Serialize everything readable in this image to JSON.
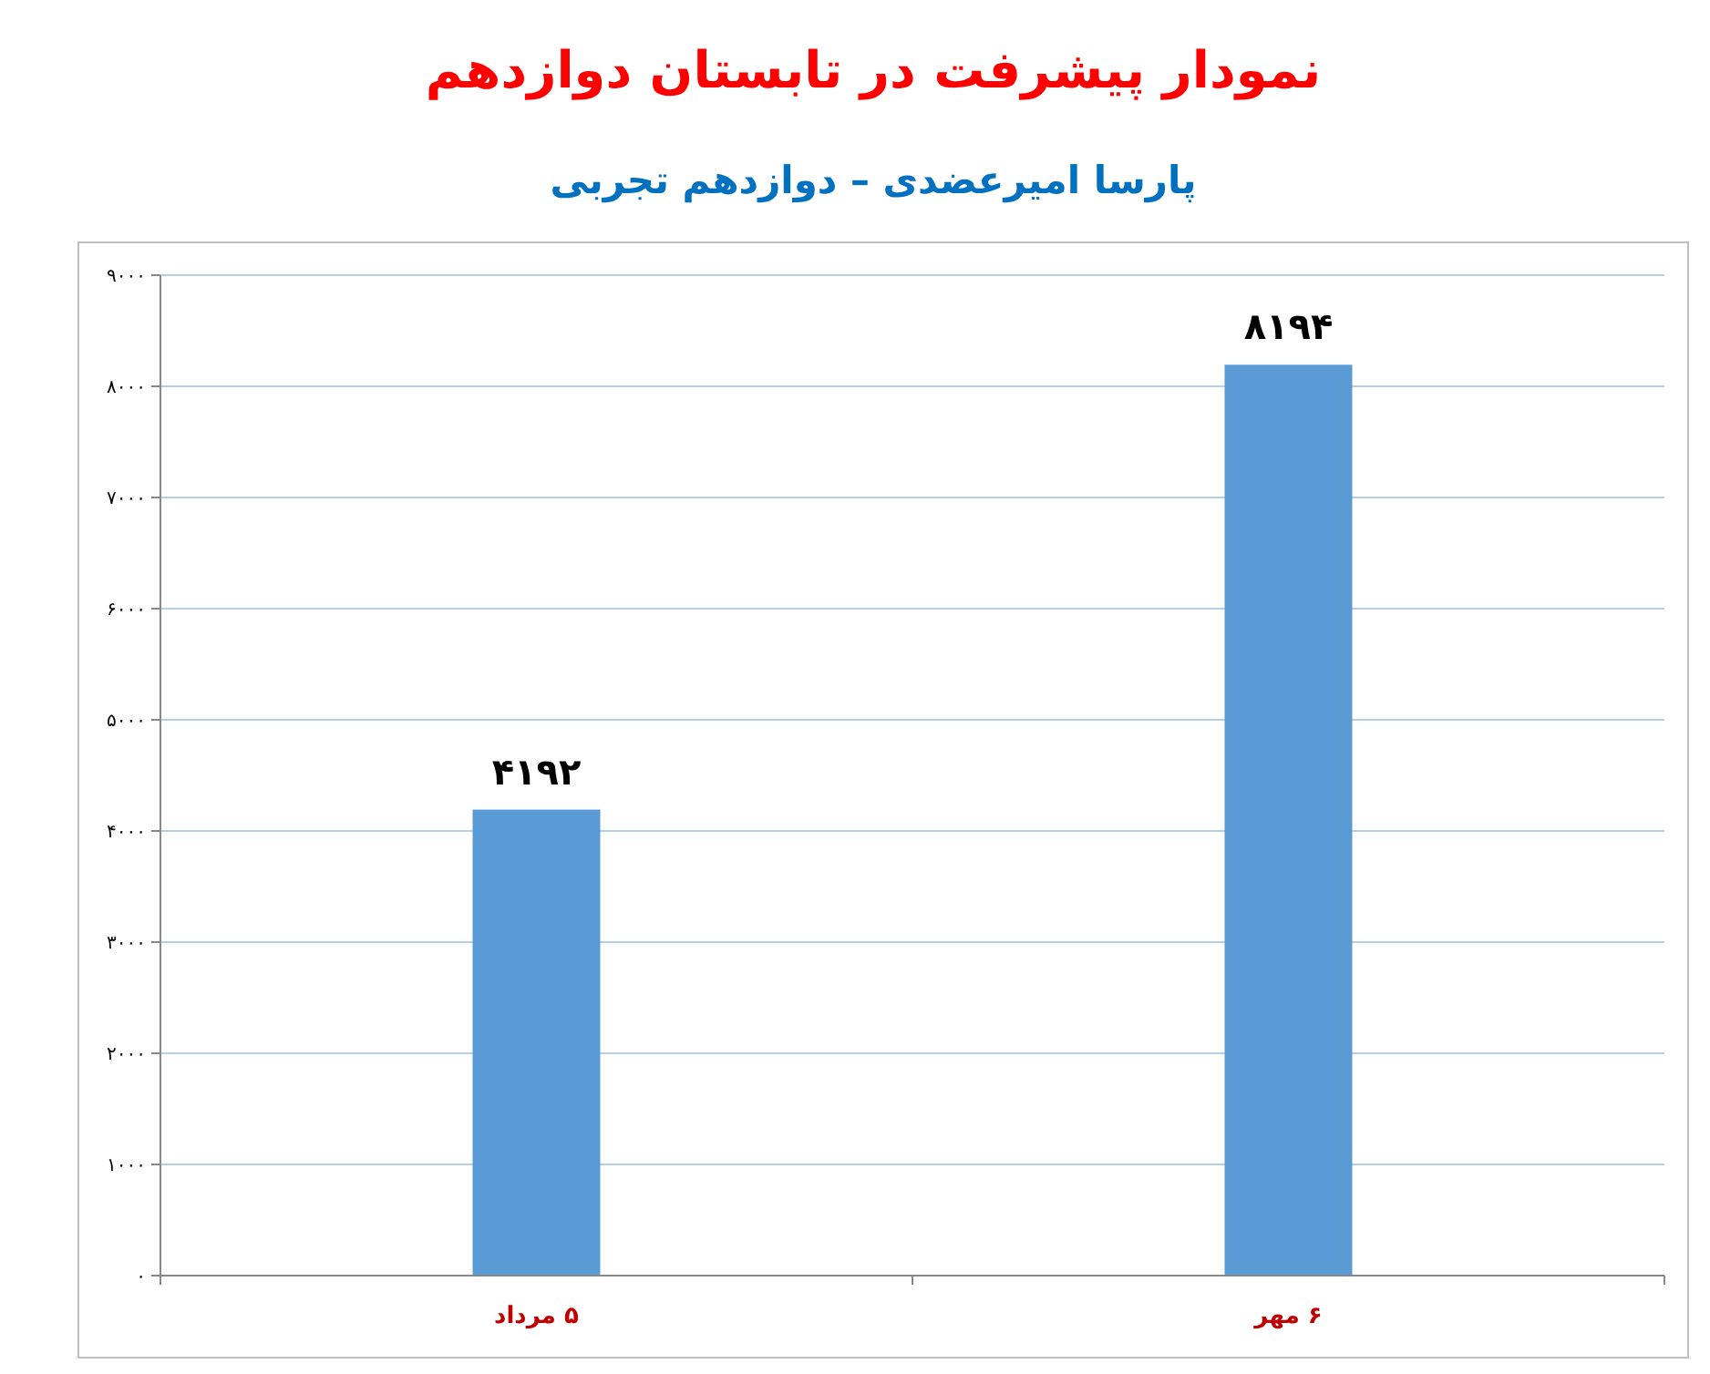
{
  "chart_data": {
    "type": "bar",
    "title": "نمودار پیشرفت در تابستان دوازدهم",
    "subtitle": "پارسا امیرعضدی – دوازدهم تجربی",
    "categories": [
      "۵ مرداد",
      "۶ مهر"
    ],
    "values": [
      4192,
      8194
    ],
    "color": "#5b9bd5",
    "value_labels": [
      "۴۱۹۲",
      "۸۱۹۴"
    ],
    "ylim": [
      0,
      9000
    ],
    "yticks": [
      {
        "value": 0,
        "label": "۰"
      },
      {
        "value": 1000,
        "label": "۱۰۰۰"
      },
      {
        "value": 2000,
        "label": "۲۰۰۰"
      },
      {
        "value": 3000,
        "label": "۳۰۰۰"
      },
      {
        "value": 4000,
        "label": "۴۰۰۰"
      },
      {
        "value": 5000,
        "label": "۵۰۰۰"
      },
      {
        "value": 6000,
        "label": "۶۰۰۰"
      },
      {
        "value": 7000,
        "label": "۷۰۰۰"
      },
      {
        "value": 8000,
        "label": "۸۰۰۰"
      },
      {
        "value": 9000,
        "label": "۹۰۰۰"
      }
    ],
    "grid": "y"
  }
}
